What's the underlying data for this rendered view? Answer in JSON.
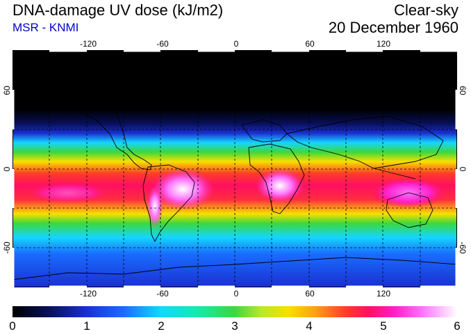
{
  "header": {
    "title": "DNA-damage UV dose (kJ/m2)",
    "source": "MSR - KNMI",
    "condition": "Clear-sky",
    "date": "20 December 1960"
  },
  "map": {
    "projection": "equirectangular",
    "lon_range": [
      -180,
      180
    ],
    "lat_range": [
      -90,
      90
    ],
    "lon_ticks": [
      "-120",
      "-60",
      "0",
      "60",
      "120"
    ],
    "lat_ticks": [
      "60",
      "0",
      "-60"
    ],
    "gridlines": "dashed"
  },
  "colorbar": {
    "labels": [
      "0",
      "1",
      "2",
      "3",
      "4",
      "5",
      "6"
    ],
    "min": 0,
    "max": 6
  },
  "colors": {
    "ocean_night": "#000000",
    "blue_low": "#1a2fd0",
    "cyan": "#14d6ff",
    "green": "#3cd83c",
    "red_high": "#ff1060",
    "magenta": "#ff20c8",
    "peak": "#ffffff",
    "source_text": "#0000cc"
  }
}
